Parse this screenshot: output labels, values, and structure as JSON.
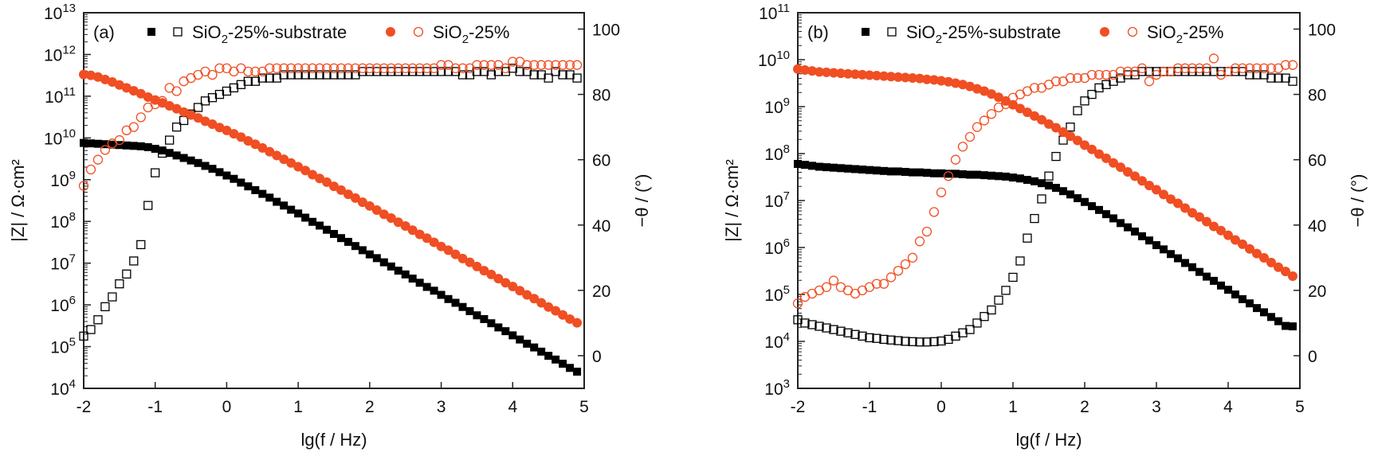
{
  "chart_data": [
    {
      "type": "scatter",
      "panel_label": "(a)",
      "xlabel": "lg(f / Hz)",
      "ylabel_left": "|Z| / Ω·cm²",
      "ylabel_right": "−θ / (°)",
      "xlim": [
        -2,
        5
      ],
      "xticks": [
        -2,
        -1,
        0,
        1,
        2,
        3,
        4,
        5
      ],
      "ylim_left_log10": [
        4,
        13
      ],
      "yticks_left_exp": [
        4,
        5,
        6,
        7,
        8,
        9,
        10,
        11,
        12,
        13
      ],
      "ylim_right": [
        -10,
        105
      ],
      "yticks_right": [
        0,
        20,
        40,
        60,
        80,
        100
      ],
      "legend": {
        "position": "top",
        "entries": [
          "SiO2-25%-substrate",
          "SiO2-25%"
        ]
      },
      "x": [
        -2,
        -1.9,
        -1.8,
        -1.7,
        -1.6,
        -1.5,
        -1.4,
        -1.3,
        -1.2,
        -1.1,
        -1,
        -0.9,
        -0.8,
        -0.7,
        -0.6,
        -0.5,
        -0.4,
        -0.3,
        -0.2,
        -0.1,
        0,
        0.1,
        0.2,
        0.3,
        0.4,
        0.5,
        0.6,
        0.7,
        0.8,
        0.9,
        1,
        1.1,
        1.2,
        1.3,
        1.4,
        1.5,
        1.6,
        1.7,
        1.8,
        1.9,
        2,
        2.1,
        2.2,
        2.3,
        2.4,
        2.5,
        2.6,
        2.7,
        2.8,
        2.9,
        3,
        3.1,
        3.2,
        3.3,
        3.4,
        3.5,
        3.6,
        3.7,
        3.8,
        3.9,
        4,
        4.1,
        4.2,
        4.3,
        4.4,
        4.5,
        4.6,
        4.7,
        4.8,
        4.9
      ],
      "series": [
        {
          "name": "SiO2-25%-substrate |Z|",
          "axis": "left",
          "marker": "filled-square",
          "color": "#000000",
          "log10_values": [
            9.88,
            9.87,
            9.86,
            9.85,
            9.84,
            9.83,
            9.82,
            9.81,
            9.8,
            9.78,
            9.74,
            9.7,
            9.64,
            9.58,
            9.52,
            9.46,
            9.4,
            9.33,
            9.26,
            9.18,
            9.1,
            9.02,
            8.93,
            8.84,
            8.75,
            8.66,
            8.57,
            8.47,
            8.38,
            8.28,
            8.19,
            8.09,
            7.99,
            7.9,
            7.8,
            7.7,
            7.6,
            7.51,
            7.41,
            7.31,
            7.21,
            7.12,
            7.02,
            6.92,
            6.82,
            6.73,
            6.63,
            6.53,
            6.43,
            6.34,
            6.24,
            6.14,
            6.05,
            5.95,
            5.85,
            5.75,
            5.66,
            5.56,
            5.46,
            5.37,
            5.27,
            5.17,
            5.07,
            4.98,
            4.88,
            4.78,
            4.69,
            4.59,
            4.49,
            4.4
          ]
        },
        {
          "name": "SiO2-25%-substrate θ",
          "axis": "right",
          "marker": "open-square",
          "color": "#000000",
          "values": [
            6,
            8,
            11,
            15,
            18,
            22,
            25,
            29,
            34,
            46,
            56,
            62,
            66,
            70,
            72,
            74,
            76,
            78,
            79,
            80,
            81,
            82,
            83,
            84,
            84,
            85,
            85,
            85,
            86,
            86,
            86,
            86,
            86,
            86,
            86,
            86,
            86,
            86,
            86,
            87,
            87,
            87,
            87,
            87,
            87,
            87,
            87,
            87,
            87,
            87,
            87,
            87,
            87,
            86,
            86,
            87,
            87,
            86,
            87,
            87,
            88,
            87,
            87,
            86,
            86,
            85,
            87,
            86,
            86,
            85
          ]
        },
        {
          "name": "SiO2-25% |Z|",
          "axis": "left",
          "marker": "filled-circle",
          "color": "#f04e23",
          "log10_values": [
            11.52,
            11.5,
            11.46,
            11.4,
            11.34,
            11.27,
            11.2,
            11.13,
            11.06,
            10.98,
            10.91,
            10.84,
            10.77,
            10.7,
            10.62,
            10.55,
            10.48,
            10.4,
            10.33,
            10.25,
            10.18,
            10.1,
            10.02,
            9.93,
            9.85,
            9.76,
            9.67,
            9.58,
            9.49,
            9.4,
            9.31,
            9.22,
            9.12,
            9.03,
            8.94,
            8.84,
            8.75,
            8.65,
            8.56,
            8.46,
            8.37,
            8.27,
            8.17,
            8.08,
            7.98,
            7.89,
            7.79,
            7.69,
            7.6,
            7.5,
            7.4,
            7.31,
            7.21,
            7.11,
            7.02,
            6.92,
            6.82,
            6.73,
            6.63,
            6.53,
            6.44,
            6.34,
            6.24,
            6.15,
            6.05,
            5.95,
            5.86,
            5.76,
            5.66,
            5.57
          ]
        },
        {
          "name": "SiO2-25% θ",
          "axis": "right",
          "marker": "open-circle",
          "color": "#f04e23",
          "values": [
            52,
            57,
            60,
            63,
            65,
            66,
            69,
            70,
            73,
            76,
            77,
            78,
            82,
            81,
            84,
            85,
            86,
            87,
            86,
            88,
            88,
            87,
            88,
            87,
            87,
            87,
            88,
            88,
            88,
            88,
            88,
            88,
            88,
            88,
            88,
            88,
            88,
            88,
            88,
            88,
            88,
            88,
            88,
            88,
            88,
            88,
            88,
            88,
            88,
            88,
            89,
            89,
            88,
            88,
            88,
            89,
            89,
            89,
            89,
            88,
            90,
            90,
            89,
            89,
            89,
            89,
            89,
            89,
            89,
            89
          ]
        }
      ]
    },
    {
      "type": "scatter",
      "panel_label": "(b)",
      "xlabel": "lg(f / Hz)",
      "ylabel_left": "|Z| / Ω·cm²",
      "ylabel_right": "−θ / (°)",
      "xlim": [
        -2,
        5
      ],
      "xticks": [
        -2,
        -1,
        0,
        1,
        2,
        3,
        4,
        5
      ],
      "ylim_left_log10": [
        3,
        11
      ],
      "yticks_left_exp": [
        3,
        4,
        5,
        6,
        7,
        8,
        9,
        10,
        11
      ],
      "ylim_right": [
        -10,
        105
      ],
      "yticks_right": [
        0,
        20,
        40,
        60,
        80,
        100
      ],
      "legend": {
        "position": "top",
        "entries": [
          "SiO2-25%-substrate",
          "SiO2-25%"
        ]
      },
      "x": [
        -2,
        -1.9,
        -1.8,
        -1.7,
        -1.6,
        -1.5,
        -1.4,
        -1.3,
        -1.2,
        -1.1,
        -1,
        -0.9,
        -0.8,
        -0.7,
        -0.6,
        -0.5,
        -0.4,
        -0.3,
        -0.2,
        -0.1,
        0,
        0.1,
        0.2,
        0.3,
        0.4,
        0.5,
        0.6,
        0.7,
        0.8,
        0.9,
        1,
        1.1,
        1.2,
        1.3,
        1.4,
        1.5,
        1.6,
        1.7,
        1.8,
        1.9,
        2,
        2.1,
        2.2,
        2.3,
        2.4,
        2.5,
        2.6,
        2.7,
        2.8,
        2.9,
        3,
        3.1,
        3.2,
        3.3,
        3.4,
        3.5,
        3.6,
        3.7,
        3.8,
        3.9,
        4,
        4.1,
        4.2,
        4.3,
        4.4,
        4.5,
        4.6,
        4.7,
        4.8,
        4.9
      ],
      "series": [
        {
          "name": "SiO2-25%-substrate |Z|",
          "axis": "left",
          "marker": "filled-square",
          "color": "#000000",
          "log10_values": [
            7.78,
            7.76,
            7.74,
            7.72,
            7.71,
            7.7,
            7.69,
            7.68,
            7.67,
            7.66,
            7.65,
            7.64,
            7.63,
            7.62,
            7.62,
            7.61,
            7.6,
            7.6,
            7.59,
            7.58,
            7.58,
            7.57,
            7.57,
            7.56,
            7.55,
            7.55,
            7.54,
            7.53,
            7.52,
            7.51,
            7.49,
            7.47,
            7.44,
            7.41,
            7.37,
            7.32,
            7.27,
            7.2,
            7.13,
            7.05,
            6.97,
            6.88,
            6.8,
            6.71,
            6.62,
            6.52,
            6.43,
            6.34,
            6.24,
            6.15,
            6.05,
            5.96,
            5.86,
            5.77,
            5.67,
            5.58,
            5.48,
            5.38,
            5.29,
            5.19,
            5.1,
            5.0,
            4.9,
            4.81,
            4.71,
            4.62,
            4.52,
            4.43,
            4.33,
            4.32
          ]
        },
        {
          "name": "SiO2-25%-substrate θ",
          "axis": "right",
          "marker": "open-square",
          "color": "#000000",
          "values": [
            11,
            10,
            9.5,
            9,
            8.5,
            8,
            7.5,
            7,
            6.5,
            6,
            5.5,
            5.3,
            5,
            4.8,
            4.6,
            4.4,
            4.3,
            4.2,
            4.2,
            4.3,
            4.5,
            5,
            6,
            7,
            8,
            10,
            12,
            14,
            17,
            20,
            24,
            29,
            36,
            42,
            48,
            55,
            61,
            66,
            70,
            75,
            78,
            80,
            82,
            83,
            84,
            85,
            86,
            86,
            87,
            87,
            87,
            87,
            87,
            87,
            87,
            87,
            87,
            87,
            87,
            87,
            87,
            87,
            87,
            86,
            86,
            86,
            85,
            85,
            85,
            84
          ]
        },
        {
          "name": "SiO2-25% |Z|",
          "axis": "left",
          "marker": "filled-circle",
          "color": "#f04e23",
          "log10_values": [
            9.8,
            9.78,
            9.76,
            9.74,
            9.73,
            9.72,
            9.71,
            9.7,
            9.69,
            9.68,
            9.67,
            9.66,
            9.65,
            9.64,
            9.63,
            9.62,
            9.61,
            9.6,
            9.58,
            9.57,
            9.55,
            9.53,
            9.5,
            9.47,
            9.43,
            9.38,
            9.33,
            9.27,
            9.2,
            9.12,
            9.04,
            8.96,
            8.88,
            8.8,
            8.72,
            8.63,
            8.55,
            8.46,
            8.37,
            8.28,
            8.18,
            8.09,
            7.99,
            7.9,
            7.8,
            7.71,
            7.61,
            7.52,
            7.42,
            7.32,
            7.23,
            7.13,
            7.03,
            6.94,
            6.84,
            6.74,
            6.65,
            6.55,
            6.45,
            6.36,
            6.26,
            6.16,
            6.07,
            5.97,
            5.87,
            5.78,
            5.68,
            5.58,
            5.49,
            5.39
          ]
        },
        {
          "name": "SiO2-25% θ",
          "axis": "right",
          "marker": "open-circle",
          "color": "#f04e23",
          "values": [
            16,
            18,
            19,
            20,
            21,
            23,
            21,
            20,
            19,
            20,
            21,
            22,
            22,
            24,
            26,
            28,
            30,
            35,
            38,
            44,
            50,
            55,
            60,
            64,
            67,
            70,
            72,
            74,
            76,
            77,
            79,
            80,
            81,
            82,
            82,
            83,
            84,
            84,
            85,
            85,
            85,
            86,
            86,
            86,
            86,
            87,
            87,
            87,
            88,
            84,
            86,
            87,
            87,
            88,
            88,
            88,
            88,
            88,
            91,
            86,
            87,
            88,
            88,
            88,
            88,
            88,
            88,
            88,
            89,
            89
          ]
        }
      ]
    }
  ]
}
